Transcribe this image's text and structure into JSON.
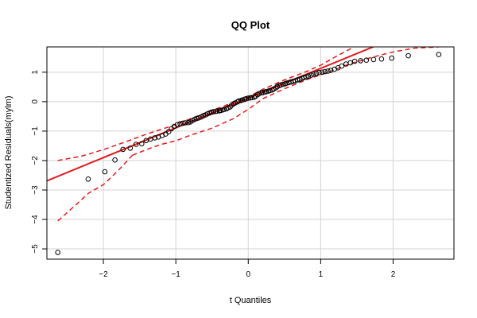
{
  "chart_data": {
    "type": "scatter",
    "title": "QQ Plot",
    "xlabel": "t Quantiles",
    "ylabel": "Studentized Residuals(mylm)",
    "xlim": [
      -2.78,
      2.84
    ],
    "ylim": [
      -5.35,
      1.86
    ],
    "xticks": [
      -2,
      -1,
      0,
      1,
      2
    ],
    "yticks": [
      -5,
      -4,
      -3,
      -2,
      -1,
      0,
      1
    ],
    "xtick_labels": [
      "−2",
      "−1",
      "0",
      "1",
      "2"
    ],
    "ytick_labels": [
      "−5",
      "−4",
      "−3",
      "−2",
      "−1",
      "0",
      "1"
    ],
    "grid": true,
    "colors": {
      "points": "#000000",
      "line": "#e31a1c",
      "grid": "#d3d3d3"
    },
    "points": [
      [
        -2.63,
        -5.12
      ],
      [
        -2.21,
        -2.63
      ],
      [
        -1.98,
        -2.38
      ],
      [
        -1.84,
        -1.98
      ],
      [
        -1.73,
        -1.62
      ],
      [
        -1.63,
        -1.58
      ],
      [
        -1.55,
        -1.45
      ],
      [
        -1.47,
        -1.43
      ],
      [
        -1.41,
        -1.32
      ],
      [
        -1.35,
        -1.27
      ],
      [
        -1.29,
        -1.23
      ],
      [
        -1.24,
        -1.2
      ],
      [
        -1.19,
        -1.15
      ],
      [
        -1.14,
        -1.1
      ],
      [
        -1.1,
        -1.02
      ],
      [
        -1.06,
        -0.92
      ],
      [
        -1.02,
        -0.84
      ],
      [
        -0.98,
        -0.78
      ],
      [
        -0.94,
        -0.75
      ],
      [
        -0.9,
        -0.73
      ],
      [
        -0.87,
        -0.72
      ],
      [
        -0.83,
        -0.71
      ],
      [
        -0.8,
        -0.69
      ],
      [
        -0.77,
        -0.64
      ],
      [
        -0.74,
        -0.6
      ],
      [
        -0.71,
        -0.57
      ],
      [
        -0.68,
        -0.55
      ],
      [
        -0.65,
        -0.52
      ],
      [
        -0.62,
        -0.48
      ],
      [
        -0.59,
        -0.45
      ],
      [
        -0.56,
        -0.41
      ],
      [
        -0.53,
        -0.38
      ],
      [
        -0.51,
        -0.36
      ],
      [
        -0.48,
        -0.34
      ],
      [
        -0.45,
        -0.33
      ],
      [
        -0.43,
        -0.32
      ],
      [
        -0.4,
        -0.31
      ],
      [
        -0.38,
        -0.3
      ],
      [
        -0.35,
        -0.28
      ],
      [
        -0.33,
        -0.26
      ],
      [
        -0.3,
        -0.24
      ],
      [
        -0.28,
        -0.21
      ],
      [
        -0.25,
        -0.18
      ],
      [
        -0.23,
        -0.12
      ],
      [
        -0.2,
        -0.07
      ],
      [
        -0.18,
        -0.04
      ],
      [
        -0.15,
        -0.01
      ],
      [
        -0.13,
        0.02
      ],
      [
        -0.1,
        0.04
      ],
      [
        -0.08,
        0.06
      ],
      [
        -0.05,
        0.08
      ],
      [
        -0.03,
        0.1
      ],
      [
        0.0,
        0.12
      ],
      [
        0.03,
        0.13
      ],
      [
        0.05,
        0.14
      ],
      [
        0.08,
        0.15
      ],
      [
        0.1,
        0.18
      ],
      [
        0.13,
        0.24
      ],
      [
        0.15,
        0.28
      ],
      [
        0.18,
        0.3
      ],
      [
        0.2,
        0.31
      ],
      [
        0.23,
        0.33
      ],
      [
        0.25,
        0.34
      ],
      [
        0.28,
        0.36
      ],
      [
        0.3,
        0.38
      ],
      [
        0.33,
        0.4
      ],
      [
        0.35,
        0.43
      ],
      [
        0.38,
        0.47
      ],
      [
        0.4,
        0.51
      ],
      [
        0.43,
        0.55
      ],
      [
        0.45,
        0.57
      ],
      [
        0.48,
        0.59
      ],
      [
        0.51,
        0.61
      ],
      [
        0.53,
        0.63
      ],
      [
        0.56,
        0.65
      ],
      [
        0.59,
        0.67
      ],
      [
        0.62,
        0.69
      ],
      [
        0.65,
        0.71
      ],
      [
        0.68,
        0.74
      ],
      [
        0.71,
        0.76
      ],
      [
        0.74,
        0.79
      ],
      [
        0.77,
        0.82
      ],
      [
        0.8,
        0.84
      ],
      [
        0.83,
        0.87
      ],
      [
        0.87,
        0.9
      ],
      [
        0.9,
        0.93
      ],
      [
        0.94,
        0.96
      ],
      [
        0.98,
        0.99
      ],
      [
        1.02,
        1.0
      ],
      [
        1.06,
        1.02
      ],
      [
        1.1,
        1.04
      ],
      [
        1.14,
        1.06
      ],
      [
        1.19,
        1.1
      ],
      [
        1.24,
        1.15
      ],
      [
        1.29,
        1.21
      ],
      [
        1.35,
        1.28
      ],
      [
        1.41,
        1.32
      ],
      [
        1.47,
        1.37
      ],
      [
        1.55,
        1.39
      ],
      [
        1.63,
        1.41
      ],
      [
        1.73,
        1.43
      ],
      [
        1.84,
        1.45
      ],
      [
        1.98,
        1.48
      ],
      [
        2.21,
        1.56
      ],
      [
        2.63,
        1.6
      ]
    ],
    "reference_line": {
      "intercept": 0.12,
      "slope": 1.01
    },
    "band_upper": [
      [
        -2.63,
        -2.0
      ],
      [
        -2.3,
        -1.85
      ],
      [
        -2.0,
        -1.63
      ],
      [
        -1.7,
        -1.37
      ],
      [
        -1.4,
        -1.1
      ],
      [
        -1.1,
        -0.86
      ],
      [
        -0.8,
        -0.58
      ],
      [
        -0.5,
        -0.3
      ],
      [
        -0.2,
        -0.02
      ],
      [
        0.0,
        0.16
      ],
      [
        0.2,
        0.42
      ],
      [
        0.5,
        0.74
      ],
      [
        0.8,
        1.02
      ],
      [
        1.0,
        1.24
      ],
      [
        1.2,
        1.52
      ],
      [
        1.4,
        1.78
      ],
      [
        1.6,
        2.04
      ]
    ],
    "band_lower": [
      [
        -1.6,
        -1.82
      ],
      [
        -1.4,
        -1.62
      ],
      [
        -1.2,
        -1.45
      ],
      [
        -1.0,
        -1.33
      ],
      [
        -0.8,
        -1.14
      ],
      [
        -0.5,
        -0.9
      ],
      [
        -0.2,
        -0.57
      ],
      [
        0.0,
        -0.26
      ],
      [
        0.2,
        0.1
      ],
      [
        0.5,
        0.44
      ],
      [
        0.8,
        0.74
      ],
      [
        1.1,
        1.0
      ],
      [
        1.4,
        1.28
      ],
      [
        1.7,
        1.5
      ],
      [
        2.0,
        1.69
      ],
      [
        2.3,
        1.82
      ],
      [
        2.63,
        1.86
      ]
    ],
    "band_lower_tail": [
      [
        -2.63,
        -4.05
      ],
      [
        -2.4,
        -3.55
      ],
      [
        -2.2,
        -3.1
      ],
      [
        -2.0,
        -2.82
      ],
      [
        -1.8,
        -2.35
      ],
      [
        -1.6,
        -1.82
      ]
    ]
  }
}
